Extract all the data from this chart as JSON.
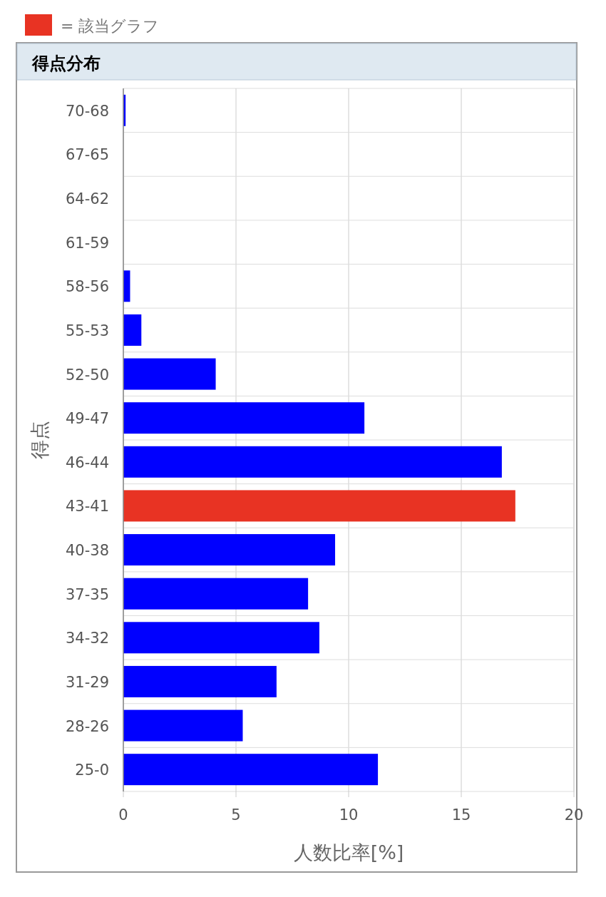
{
  "chart_data": {
    "type": "bar",
    "orientation": "horizontal",
    "title": "得点分布",
    "xlabel": "人数比率[%]",
    "ylabel": "得点",
    "categories": [
      "70-68",
      "67-65",
      "64-62",
      "61-59",
      "58-56",
      "55-53",
      "52-50",
      "49-47",
      "46-44",
      "43-41",
      "40-38",
      "37-35",
      "34-32",
      "31-29",
      "28-26",
      "25-0"
    ],
    "values": [
      0.1,
      0,
      0,
      0,
      0.3,
      0.8,
      4.1,
      10.7,
      16.8,
      17.4,
      9.4,
      8.2,
      8.7,
      6.8,
      5.3,
      11.3
    ],
    "colors": [
      "#0000ff",
      "#0000ff",
      "#0000ff",
      "#0000ff",
      "#0000ff",
      "#0000ff",
      "#0000ff",
      "#0000ff",
      "#0000ff",
      "#e83323",
      "#0000ff",
      "#0000ff",
      "#0000ff",
      "#0000ff",
      "#0000ff",
      "#0000ff"
    ],
    "xlim": [
      0,
      20
    ],
    "xticks": [
      0,
      5,
      10,
      15,
      20
    ],
    "grid": true,
    "annotations": [
      "= 該当グラフ"
    ]
  }
}
